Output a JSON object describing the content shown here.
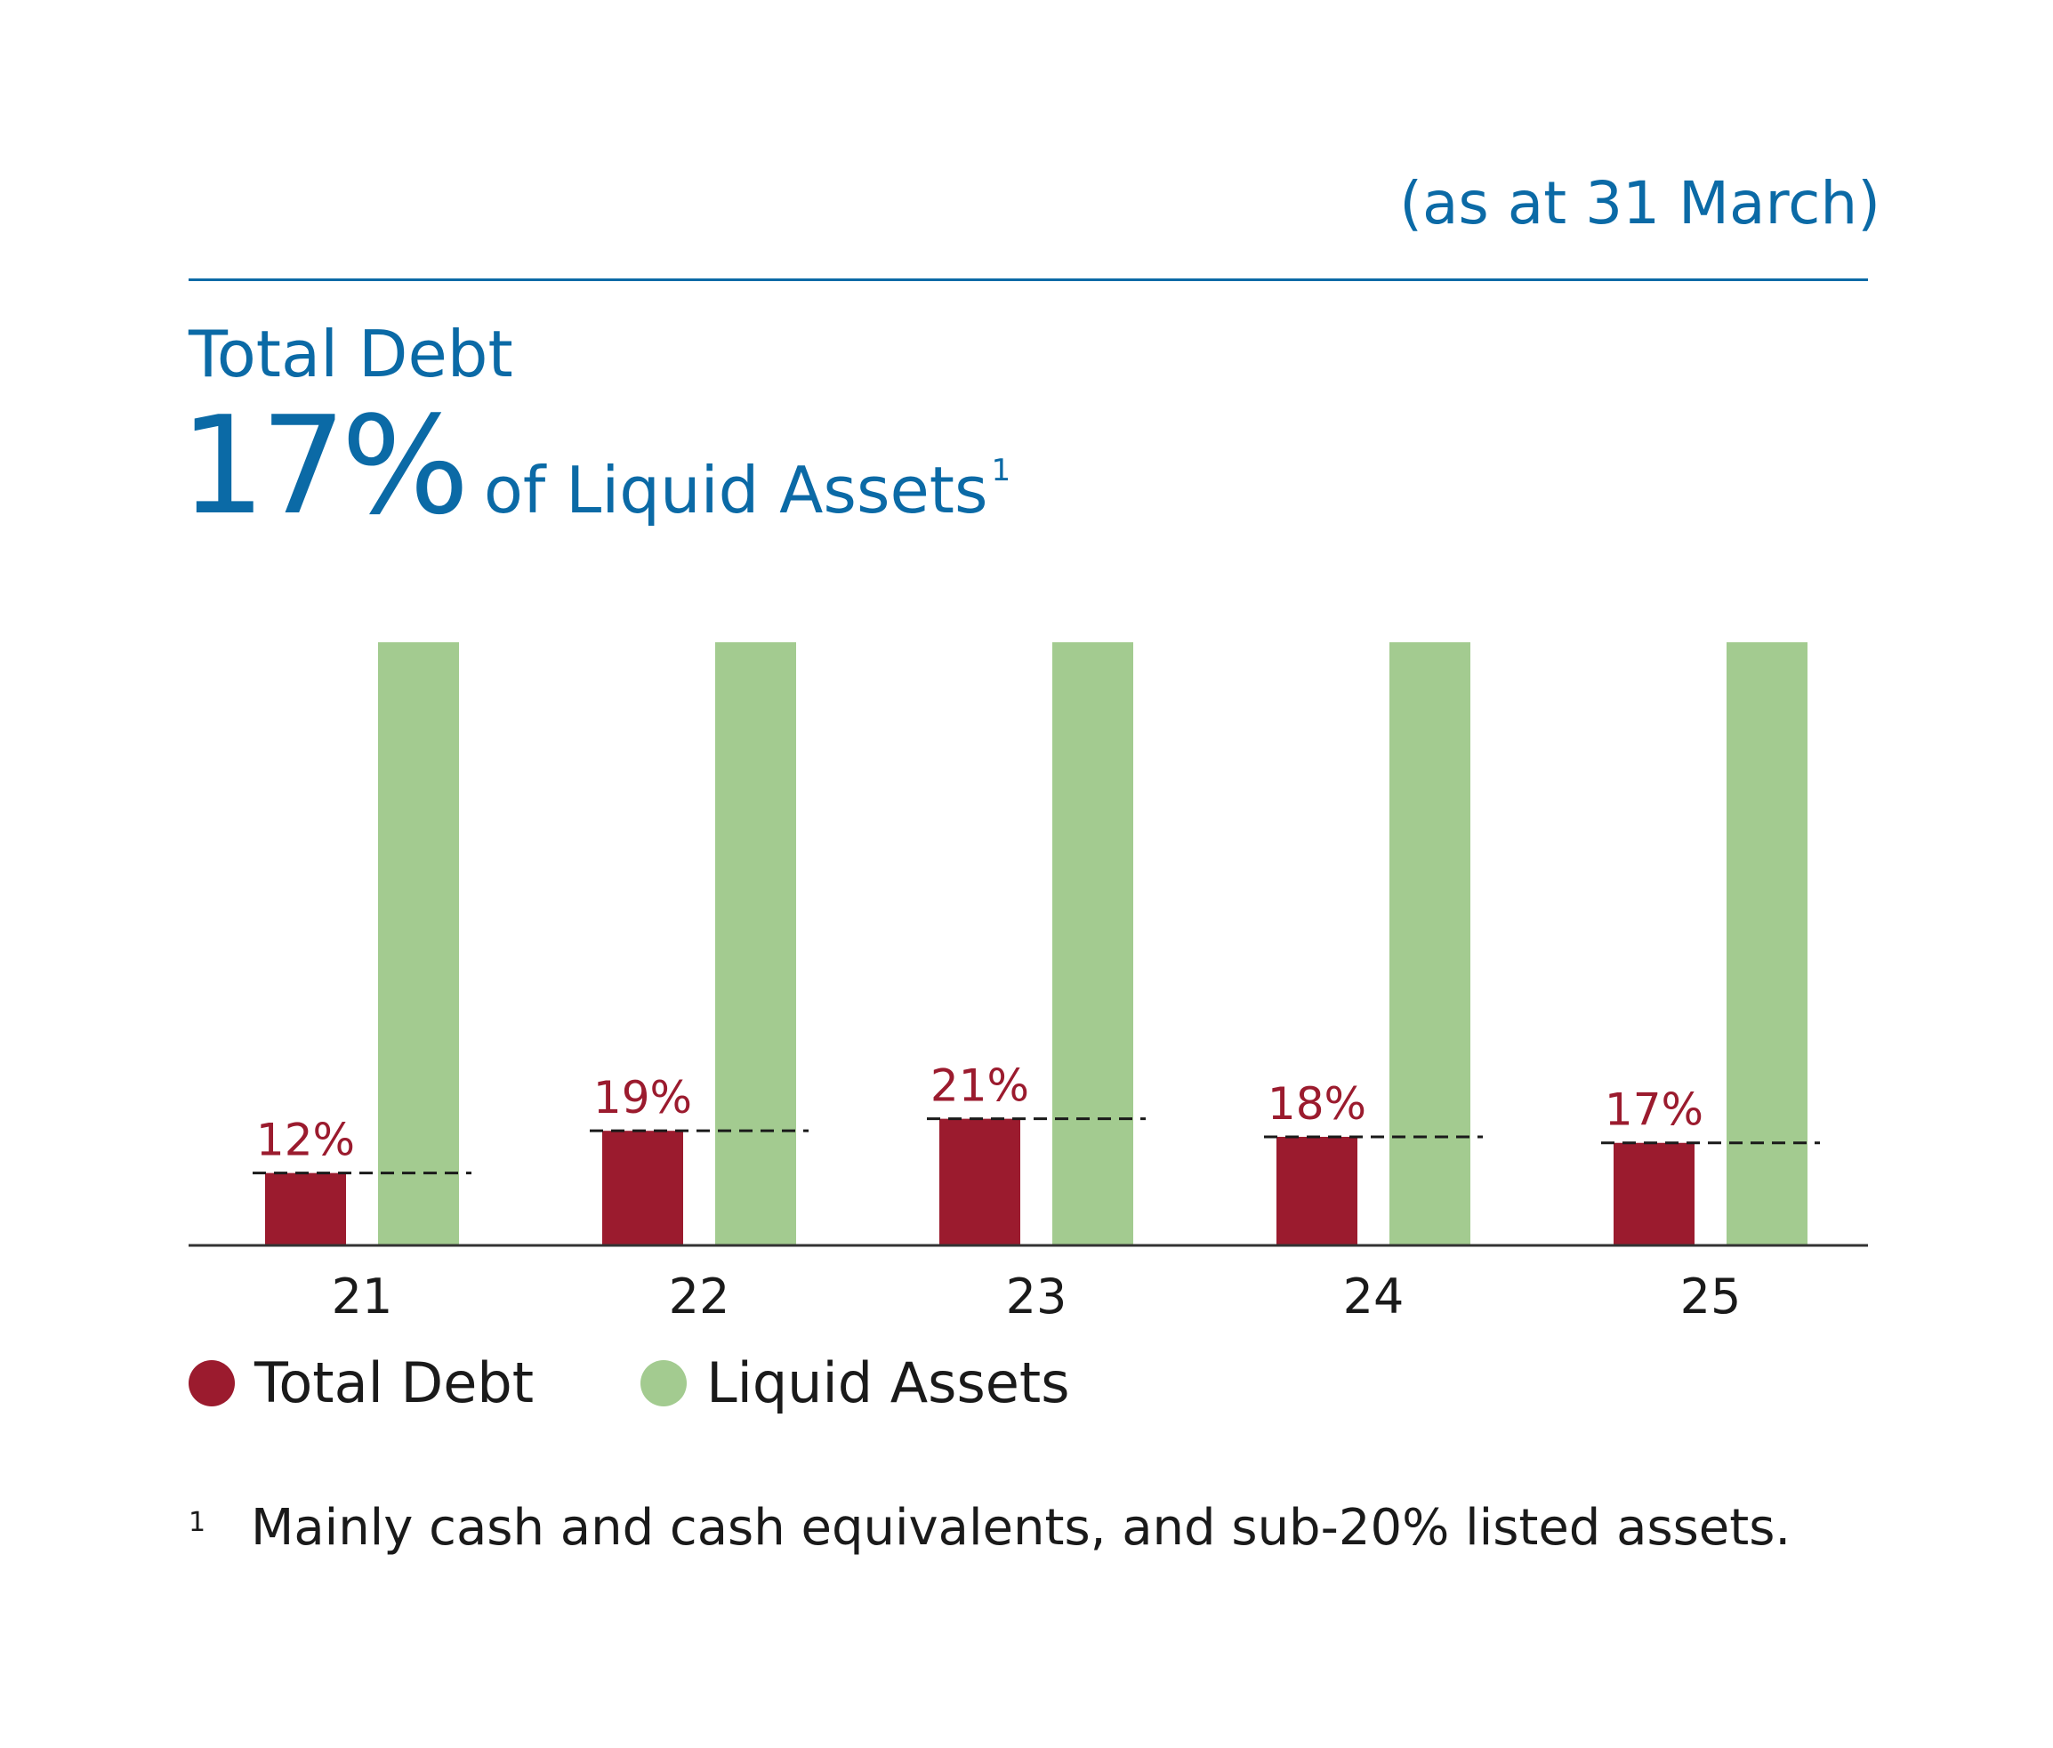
{
  "header": {
    "date_note": "(as at 31 March)",
    "title_line1": "Total Debt",
    "headline_value": "17%",
    "headline_tail": "of Liquid Assets",
    "headline_sup": "1"
  },
  "chart_data": {
    "type": "bar",
    "categories": [
      "21",
      "22",
      "23",
      "24",
      "25"
    ],
    "series": [
      {
        "name": "Total Debt",
        "values": [
          12,
          19,
          21,
          18,
          17
        ],
        "labels": [
          "12%",
          "19%",
          "21%",
          "18%",
          "17%"
        ],
        "color": "#9b1b2e"
      },
      {
        "name": "Liquid Assets",
        "values": [
          100,
          100,
          100,
          100,
          100
        ],
        "color": "#a3cb90"
      }
    ],
    "ylim": [
      0,
      100
    ],
    "grid": false,
    "legend": "bottom-left",
    "reference_line_style": "dashed"
  },
  "footnote": {
    "mark": "1",
    "text": "Mainly cash and cash equivalents, and sub-20% listed assets."
  }
}
